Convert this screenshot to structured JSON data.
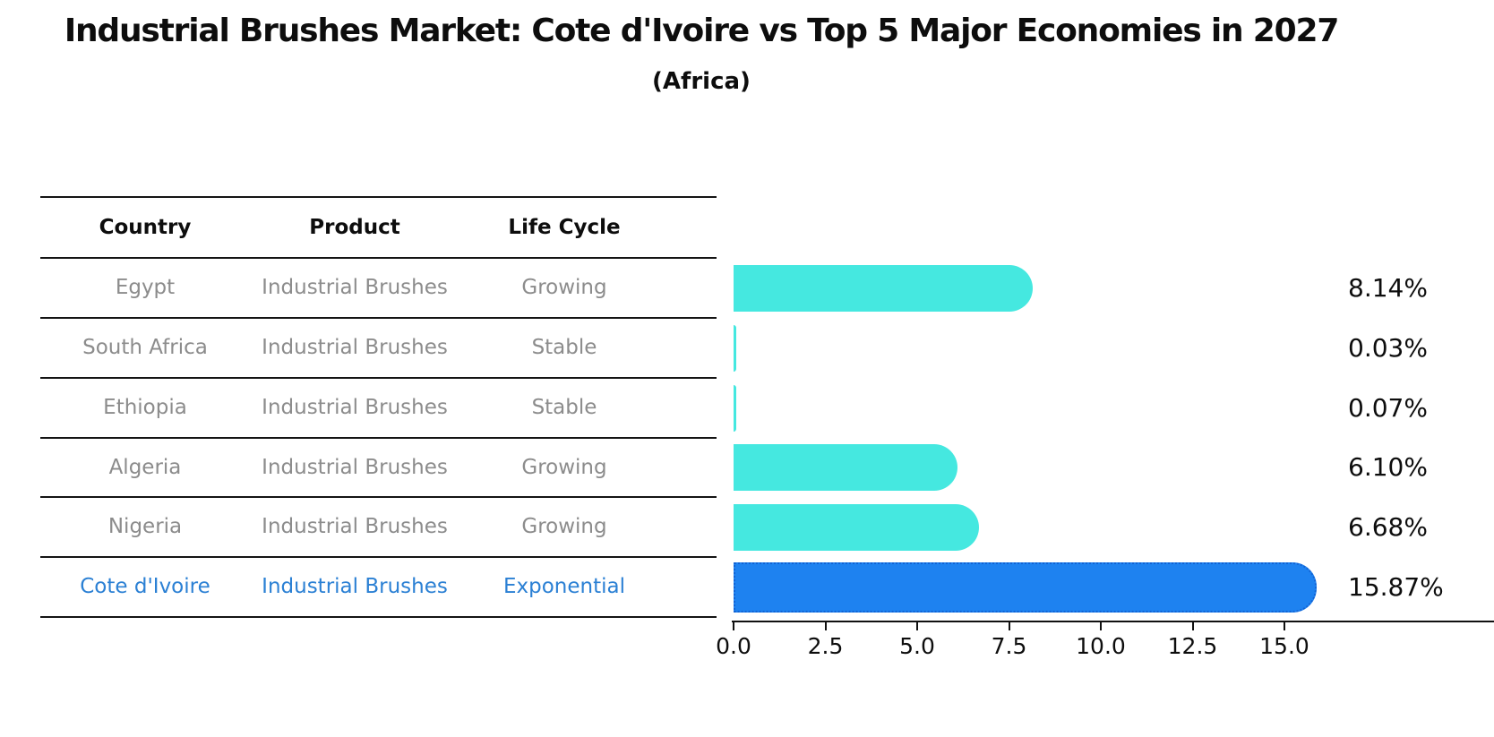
{
  "header": {
    "title": "Industrial Brushes Market: Cote d'Ivoire vs Top 5 Major Economies in 2027",
    "subtitle": "(Africa)"
  },
  "table": {
    "columns": [
      "Country",
      "Product",
      "Life Cycle"
    ],
    "rows": [
      {
        "country": "Egypt",
        "product": "Industrial Brushes",
        "life_cycle": "Growing"
      },
      {
        "country": "South Africa",
        "product": "Industrial Brushes",
        "life_cycle": "Stable"
      },
      {
        "country": "Ethiopia",
        "product": "Industrial Brushes",
        "life_cycle": "Stable"
      },
      {
        "country": "Algeria",
        "product": "Industrial Brushes",
        "life_cycle": "Growing"
      },
      {
        "country": "Nigeria",
        "product": "Industrial Brushes",
        "life_cycle": "Growing"
      },
      {
        "country": "Cote d'Ivoire",
        "product": "Industrial Brushes",
        "life_cycle": "Exponential"
      }
    ],
    "highlight_row_index": 5
  },
  "chart_data": {
    "type": "bar",
    "orientation": "horizontal",
    "title": "Industrial Brushes Market: Cote d'Ivoire vs Top 5 Major Economies in 2027 (Africa)",
    "categories": [
      "Egypt",
      "South Africa",
      "Ethiopia",
      "Algeria",
      "Nigeria",
      "Cote d'Ivoire"
    ],
    "values": [
      8.14,
      0.03,
      0.07,
      6.1,
      6.68,
      15.87
    ],
    "value_labels": [
      "8.14%",
      "0.03%",
      "0.07%",
      "6.10%",
      "6.68%",
      "15.87%"
    ],
    "unit": "percent",
    "xlabel": "",
    "ylabel": "",
    "xlim": [
      0,
      16.6
    ],
    "x_ticks": [
      0.0,
      2.5,
      5.0,
      7.5,
      10.0,
      12.5,
      15.0
    ],
    "x_tick_labels": [
      "0.0",
      "2.5",
      "5.0",
      "7.5",
      "10.0",
      "12.5",
      "15.0"
    ],
    "grid": false,
    "legend": false,
    "highlight_index": 5
  },
  "colors": {
    "default_bar": "#45e8e0",
    "highlight_bar": "#1e82f0",
    "highlight_edge": "#1263d4",
    "highlight_text": "#2b80d4",
    "table_text": "#8c8c8c",
    "heading_text": "#0d0d0d"
  }
}
